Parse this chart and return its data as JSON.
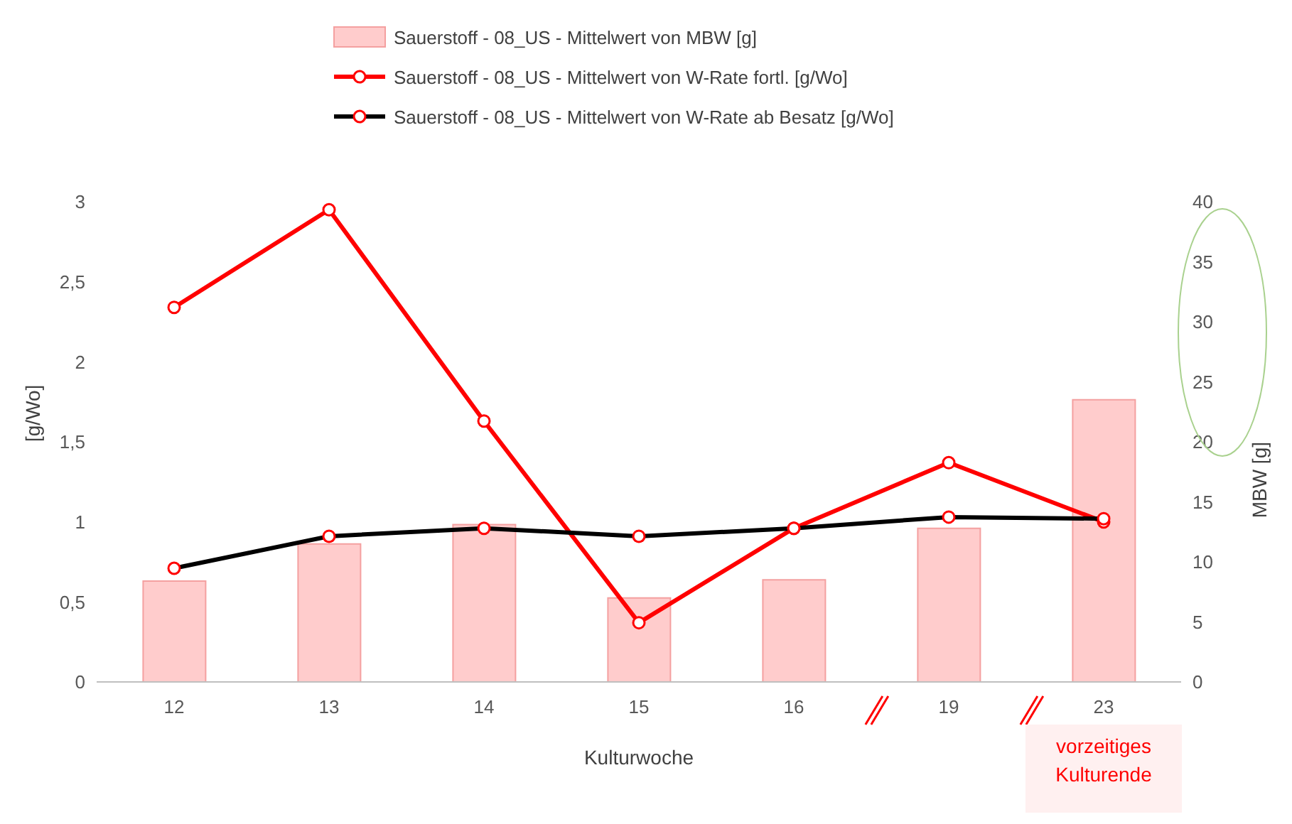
{
  "chart_data": {
    "type": "bar",
    "xlabel": "Kulturwoche",
    "ylabel": "[g/Wo]",
    "y2label": "MBW [g]",
    "categories": [
      "12",
      "13",
      "14",
      "15",
      "16",
      "19",
      "23"
    ],
    "series": [
      {
        "name": "Sauerstoff - 08_US - Mittelwert von MBW [g]",
        "axis": "y2",
        "color": "#ffcccc",
        "values": [
          8.4,
          11.5,
          13.1,
          7.0,
          8.5,
          12.8,
          23.5
        ]
      },
      {
        "name": "Sauerstoff - 08_US - Mittelwert von W-Rate fortl. [g/Wo]",
        "type": "line",
        "color": "#ff0000",
        "values": [
          2.34,
          2.95,
          1.63,
          0.37,
          0.96,
          1.37,
          1.0
        ]
      },
      {
        "name": "Sauerstoff - 08_US - Mittelwert von W-Rate ab Besatz [g/Wo]",
        "type": "line",
        "color": "#000000",
        "values": [
          0.71,
          0.91,
          0.96,
          0.91,
          0.96,
          1.03,
          1.02
        ]
      }
    ],
    "ylim": [
      0,
      3
    ],
    "yticks": [
      0,
      {
        "value": 0.5,
        "label": "0,5"
      },
      1,
      {
        "value": 1.5,
        "label": "1,5"
      },
      2,
      {
        "value": 2.5,
        "label": "2,5"
      },
      3
    ],
    "y2lim": [
      0,
      40
    ],
    "y2ticks": [
      0,
      5,
      10,
      15,
      20,
      25,
      30,
      35,
      40
    ],
    "annotations": [
      "vorzeitiges Kulturende"
    ],
    "legend": "top",
    "grid": false,
    "marker": "circle",
    "line_style": "solid"
  }
}
